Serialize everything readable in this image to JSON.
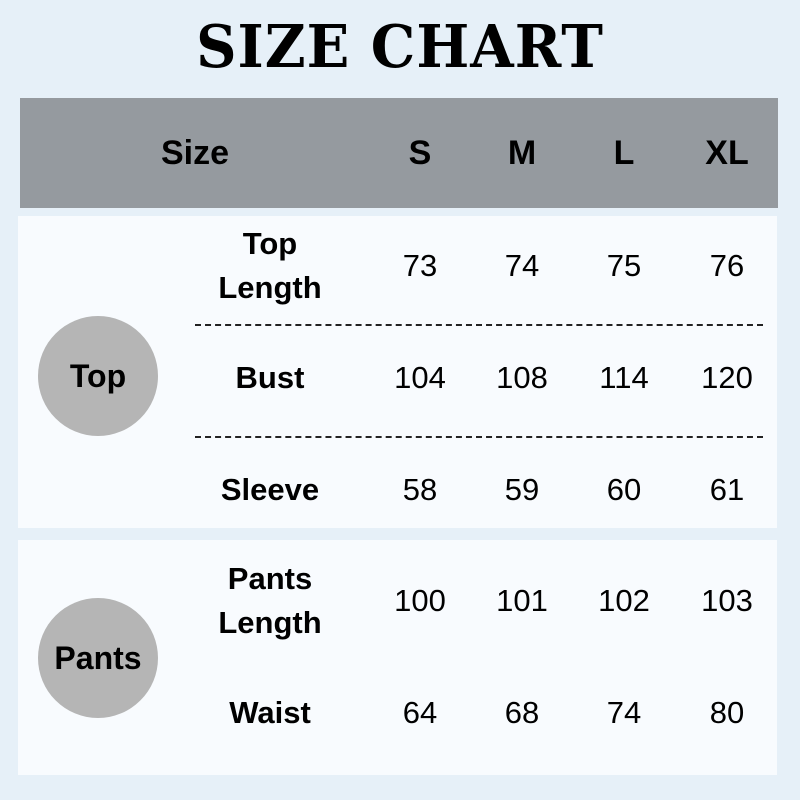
{
  "title": "SIZE CHART",
  "header": {
    "size_label": "Size",
    "sizes": [
      "S",
      "M",
      "L",
      "XL"
    ]
  },
  "colors": {
    "background": "#e6f0f8",
    "header": "#959a9f",
    "panel": "#f8fbfe",
    "circle": "#b5b5b5"
  },
  "groups": [
    {
      "name": "Top",
      "rows": [
        {
          "label": "Top Length",
          "values": [
            "73",
            "74",
            "75",
            "76"
          ]
        },
        {
          "label": "Bust",
          "values": [
            "104",
            "108",
            "114",
            "120"
          ]
        },
        {
          "label": "Sleeve",
          "values": [
            "58",
            "59",
            "60",
            "61"
          ]
        }
      ]
    },
    {
      "name": "Pants",
      "rows": [
        {
          "label": "Pants Length",
          "values": [
            "100",
            "101",
            "102",
            "103"
          ]
        },
        {
          "label": "Waist",
          "values": [
            "64",
            "68",
            "74",
            "80"
          ]
        }
      ]
    }
  ]
}
